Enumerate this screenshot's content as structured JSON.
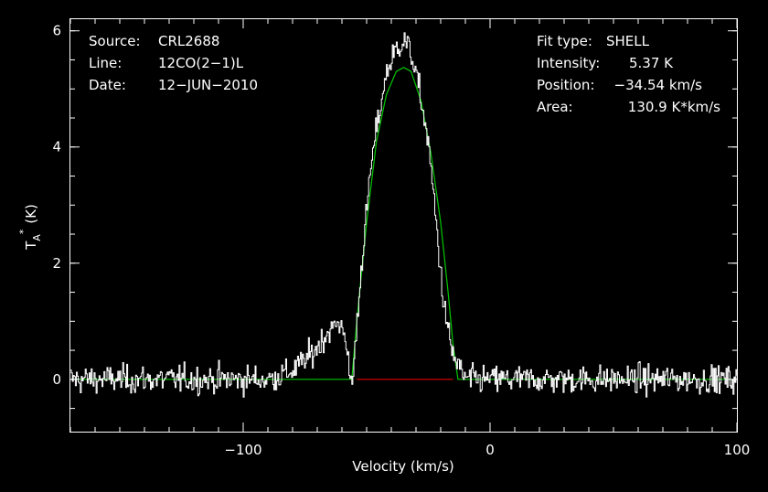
{
  "chart_data": {
    "type": "line",
    "xlabel": "Velocity (km/s)",
    "ylabel_main": "T",
    "ylabel_sub": "A",
    "ylabel_sup": "*",
    "ylabel_unit": "(K)",
    "xlim": [
      -170,
      100
    ],
    "ylim": [
      -0.9,
      6.2
    ],
    "x_ticks": [
      {
        "value": -100,
        "label": "−100"
      },
      {
        "value": 0,
        "label": "0"
      },
      {
        "value": 100,
        "label": "100"
      }
    ],
    "y_ticks": [
      {
        "value": 0,
        "label": "0"
      },
      {
        "value": 2,
        "label": "2"
      },
      {
        "value": 4,
        "label": "4"
      },
      {
        "value": 6,
        "label": "6"
      }
    ],
    "x_minor_step": 10,
    "y_minor_step": 0.5,
    "grid": false,
    "colors": {
      "spectrum": "#ffffff",
      "fit": "#00c800",
      "window": "#e00000",
      "axes": "#ffffff"
    },
    "series": [
      {
        "role": "observed spectrum",
        "noise_rms": 0.17,
        "x": [
          -170,
          -90,
          -80,
          -72,
          -66,
          -62,
          -59,
          -58,
          -56,
          -52,
          -48,
          -45,
          -42,
          -38,
          -35,
          -32,
          -28,
          -25,
          -22,
          -19,
          -16,
          -14,
          -12,
          -10,
          -5,
          0,
          100
        ],
        "y": [
          0,
          0,
          0.15,
          0.45,
          0.8,
          0.95,
          0.9,
          0.3,
          -0.1,
          2.1,
          3.8,
          4.6,
          5.3,
          5.7,
          5.85,
          5.6,
          4.8,
          4.0,
          2.7,
          1.3,
          0.55,
          0.3,
          0.15,
          0,
          0,
          0,
          0
        ]
      },
      {
        "role": "fit",
        "fit_type": "SHELL",
        "x": [
          -170,
          -56,
          -54,
          -50,
          -46,
          -42,
          -38,
          -35,
          -32,
          -28,
          -24,
          -20,
          -17,
          -15,
          -13,
          100
        ],
        "y": [
          0,
          0,
          1.0,
          2.7,
          4.1,
          4.9,
          5.3,
          5.37,
          5.3,
          4.8,
          3.9,
          2.7,
          1.5,
          0.6,
          0,
          0
        ]
      },
      {
        "role": "baseline window",
        "x": [
          -54,
          -15
        ],
        "y": [
          0,
          0
        ]
      }
    ]
  },
  "info_left": {
    "source_key": "Source:",
    "source_val": "CRL2688",
    "line_key": "Line:",
    "line_val": "12CO(2−1)L",
    "date_key": "Date:",
    "date_val": "12−JUN−2010"
  },
  "info_right": {
    "fit_key": "Fit type:",
    "fit_val": "SHELL",
    "int_key": "Intensity:",
    "int_val": "5.37 K",
    "pos_key": "Position:",
    "pos_val": "−34.54 km/s",
    "area_key": "Area:",
    "area_val": "130.9 K*km/s"
  }
}
